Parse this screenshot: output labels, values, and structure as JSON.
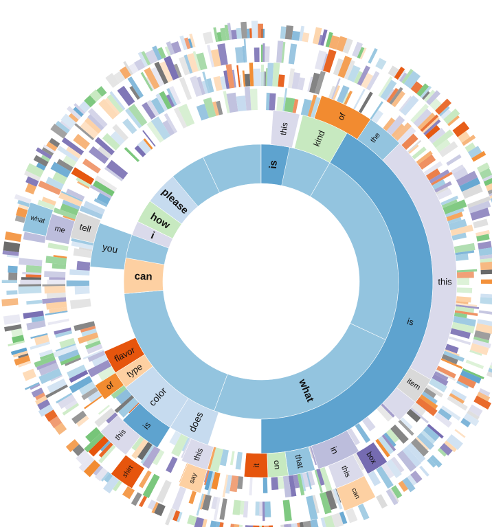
{
  "chart_data": {
    "type": "sunburst",
    "title": "",
    "palette": {
      "blue_dark": "#5ea3cf",
      "blue_mid": "#93c4df",
      "blue_light": "#c6dbef",
      "orange": "#f28b30",
      "orange_light": "#fdd0a2",
      "orange_dark": "#e6550d",
      "green_light": "#c7e9c0",
      "green": "#74c476",
      "purple_light": "#dadaeb",
      "purple": "#bcbddc",
      "purple_dark": "#756bb1",
      "grey": "#d9d9d9",
      "grey_dark": "#636363"
    },
    "segments": [
      {
        "ring": 1,
        "label": "what",
        "start": 115,
        "end": 200,
        "color": "#93c4df",
        "font": 15,
        "bold": true
      },
      {
        "ring": 1,
        "label": "",
        "start": 200,
        "end": 265,
        "color": "#93c4df"
      },
      {
        "ring": 1,
        "label": "",
        "start": 265,
        "end": 335,
        "color": "#93c4df"
      },
      {
        "ring": 1,
        "label": "",
        "start": 335,
        "end": 360,
        "color": "#93c4df"
      },
      {
        "ring": 1,
        "label": "",
        "start": 0,
        "end": 30,
        "color": "#93c4df"
      },
      {
        "ring": 1,
        "label": "",
        "start": 30,
        "end": 115,
        "color": "#93c4df"
      },
      {
        "ring": 1,
        "label": "can",
        "start": 265,
        "end": 280,
        "color": "#fdd0a2",
        "font": 15,
        "bold": true
      },
      {
        "ring": 1,
        "label": "i",
        "start": 290,
        "end": 296,
        "color": "#dadaeb",
        "font": 15,
        "bold": true
      },
      {
        "ring": 1,
        "label": "how",
        "start": 296,
        "end": 306,
        "color": "#c7e9c0",
        "font": 15,
        "bold": true
      },
      {
        "ring": 1,
        "label": "please",
        "start": 306,
        "end": 320,
        "color": "#c6dbef",
        "font": 15,
        "bold": true
      },
      {
        "ring": 1,
        "label": "is",
        "start": 0,
        "end": 12,
        "color": "#5ea3cf",
        "font": 15,
        "bold": true
      },
      {
        "ring": 2,
        "label": "is",
        "start": 30,
        "end": 180,
        "color": "#5ea3cf",
        "font": 13
      },
      {
        "ring": 2,
        "label": "does",
        "start": 198,
        "end": 212,
        "color": "#c6dbef",
        "font": 14
      },
      {
        "ring": 2,
        "label": "color",
        "start": 212,
        "end": 232,
        "color": "#c6dbef",
        "font": 14
      },
      {
        "ring": 2,
        "label": "type",
        "start": 232,
        "end": 238,
        "color": "#fdd0a2",
        "font": 13
      },
      {
        "ring": 2,
        "label": "flavor",
        "start": 238,
        "end": 246,
        "color": "#e6550d",
        "font": 13
      },
      {
        "ring": 2,
        "label": "you",
        "start": 275,
        "end": 290,
        "color": "#93c4df",
        "font": 14
      },
      {
        "ring": 2,
        "label": "this",
        "start": 4,
        "end": 13,
        "color": "#dadaeb",
        "font": 12
      },
      {
        "ring": 2,
        "label": "kind",
        "start": 14,
        "end": 30,
        "color": "#c7e9c0",
        "font": 13
      },
      {
        "ring": 3,
        "label": "this",
        "start": 45,
        "end": 135,
        "color": "#dadaeb",
        "font": 13
      },
      {
        "ring": 3,
        "label": "item",
        "start": 120,
        "end": 128,
        "color": "#d9d9d9",
        "font": 11
      },
      {
        "ring": 3,
        "label": "in",
        "start": 150,
        "end": 163,
        "color": "#bcbddc",
        "font": 13
      },
      {
        "ring": 3,
        "label": "that",
        "start": 164,
        "end": 172,
        "color": "#93c4df",
        "font": 12
      },
      {
        "ring": 3,
        "label": "on",
        "start": 172,
        "end": 178,
        "color": "#c7e9c0",
        "font": 12
      },
      {
        "ring": 3,
        "label": "it",
        "start": 178,
        "end": 185,
        "color": "#e6550d",
        "font": 12
      },
      {
        "ring": 3,
        "label": "this",
        "start": 196,
        "end": 204,
        "color": "#dadaeb",
        "font": 12
      },
      {
        "ring": 3,
        "label": "is",
        "start": 212,
        "end": 225,
        "color": "#5ea3cf",
        "font": 13
      },
      {
        "ring": 3,
        "label": "of",
        "start": 233,
        "end": 238,
        "color": "#f28b30",
        "font": 12
      },
      {
        "ring": 3,
        "label": "tell",
        "start": 283,
        "end": 291,
        "color": "#d9d9d9",
        "font": 13
      },
      {
        "ring": 3,
        "label": "the",
        "start": 32,
        "end": 45,
        "color": "#93c4df",
        "font": 11
      },
      {
        "ring": 3,
        "label": "of",
        "start": 18,
        "end": 34,
        "color": "#f28b30",
        "font": 12
      },
      {
        "ring": 4,
        "label": "box",
        "start": 145,
        "end": 151,
        "color": "#756bb1",
        "font": 11
      },
      {
        "ring": 4,
        "label": "this",
        "start": 152,
        "end": 160,
        "color": "#dadaeb",
        "font": 11
      },
      {
        "ring": 4,
        "label": "say",
        "start": 196,
        "end": 202,
        "color": "#fdd0a2",
        "font": 10
      },
      {
        "ring": 4,
        "label": "this",
        "start": 218,
        "end": 227,
        "color": "#dadaeb",
        "font": 11
      },
      {
        "ring": 4,
        "label": "me",
        "start": 281,
        "end": 288,
        "color": "#bcbddc",
        "font": 11
      },
      {
        "ring": 5,
        "label": "can",
        "start": 152,
        "end": 160,
        "color": "#fdd0a2",
        "font": 10
      },
      {
        "ring": 5,
        "label": "shirt",
        "start": 212,
        "end": 218,
        "color": "#e6550d",
        "font": 10
      },
      {
        "ring": 5,
        "label": "what",
        "start": 282,
        "end": 289,
        "color": "#93c4df",
        "font": 10
      }
    ]
  }
}
